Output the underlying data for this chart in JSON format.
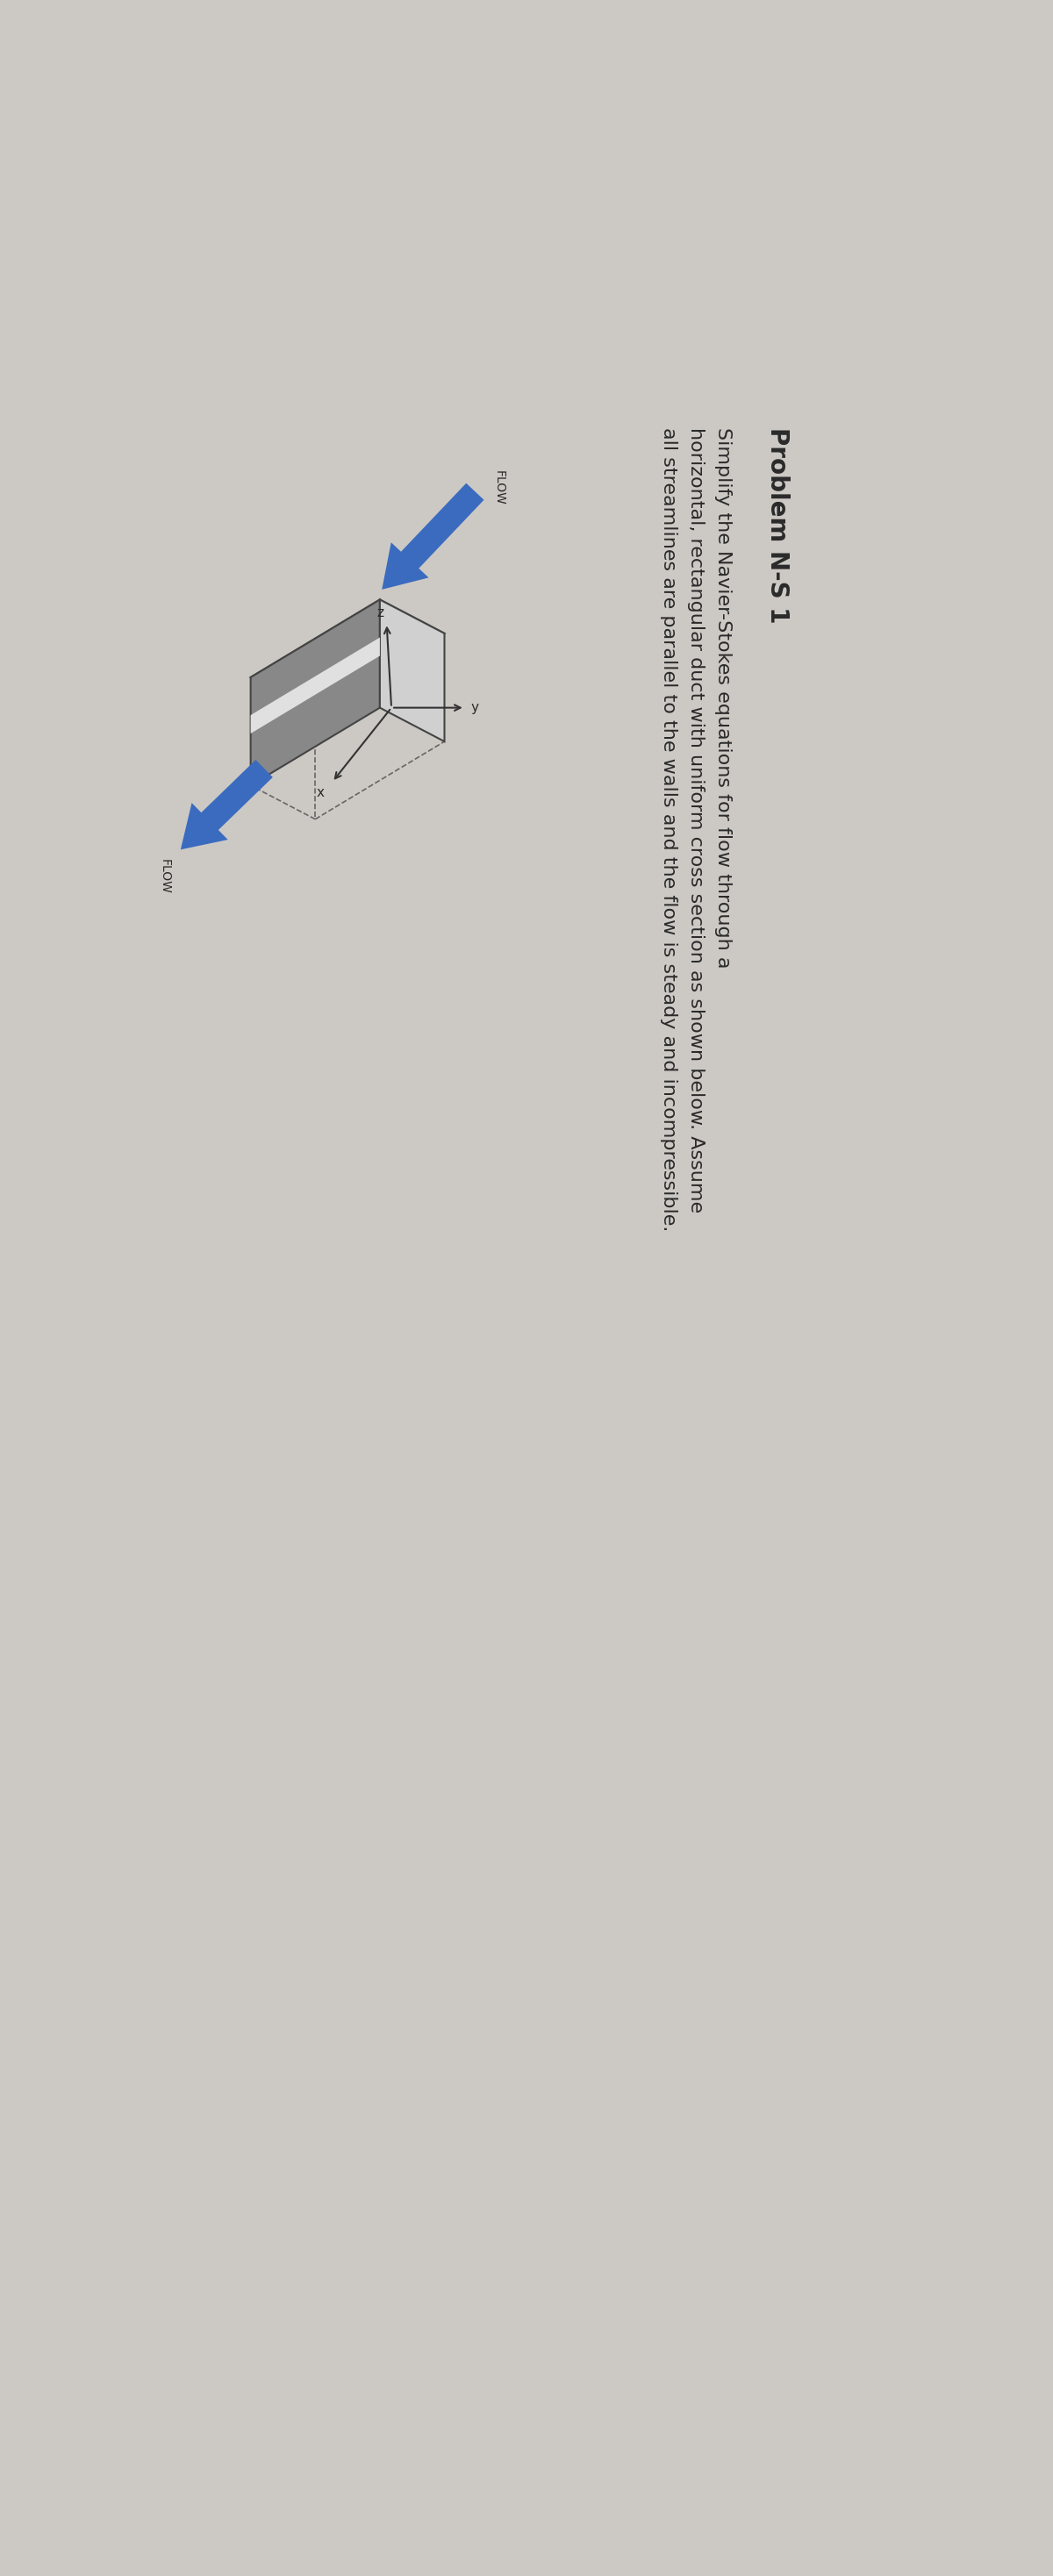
{
  "background_color": "#ccc9c4",
  "figure_width": 12.0,
  "figure_height": 29.36,
  "title": "Problem N-S 1",
  "subtitle": "Simplify the Navier-Stokes equations for flow through a",
  "body_line1": "horizontal, rectangular duct with uniform cross section as shown below. Assume",
  "body_line2": "all streamlines are parallel to the walls and the flow is steady and incompressible.",
  "flow_label": "FLOW",
  "axis_label_x": "x",
  "axis_label_y": "y",
  "axis_label_z": "z",
  "arrow_color": "#3a6bbf",
  "duct_face_top": "#b0b0b0",
  "duct_face_front": "#888888",
  "duct_face_right": "#d0d0d0",
  "duct_stripe": "#e0e0e0",
  "duct_edge_color": "#444444",
  "text_color": "#2a2a2a",
  "title_fontsize": 20,
  "body_fontsize": 16,
  "flow_fontsize": 10
}
